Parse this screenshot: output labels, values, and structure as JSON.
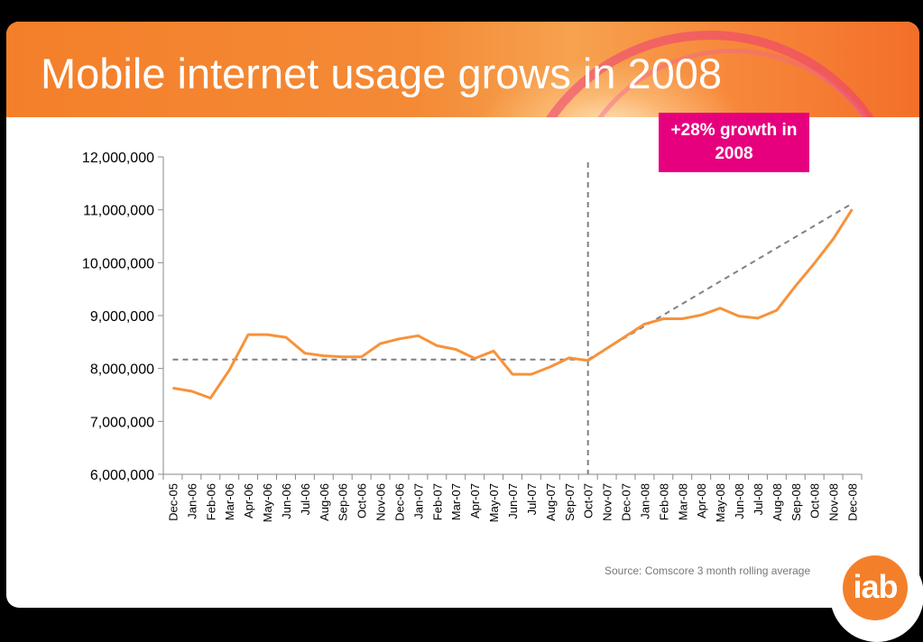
{
  "slide": {
    "title": "Mobile internet usage grows in 2008",
    "callout": "+28% growth in 2008",
    "source": "Source: Comscore 3 month rolling average",
    "logo_text": "iab"
  },
  "colors": {
    "header": "#f47f2a",
    "line": "#f7923a",
    "callout": "#e6007e",
    "trend": "#808080"
  },
  "chart_data": {
    "type": "line",
    "title": "",
    "xlabel": "",
    "ylabel": "",
    "ylim": [
      6000000,
      12000000
    ],
    "yticks": [
      6000000,
      7000000,
      8000000,
      9000000,
      10000000,
      11000000,
      12000000
    ],
    "ytick_labels": [
      "6,000,000",
      "7,000,000",
      "8,000,000",
      "9,000,000",
      "10,000,000",
      "11,000,000",
      "12,000,000"
    ],
    "categories": [
      "Dec-05",
      "Jan-06",
      "Feb-06",
      "Mar-06",
      "Apr-06",
      "May-06",
      "Jun-06",
      "Jul-06",
      "Aug-06",
      "Sep-06",
      "Oct-06",
      "Nov-06",
      "Dec-06",
      "Jan-07",
      "Feb-07",
      "Mar-07",
      "Apr-07",
      "May-07",
      "Jun-07",
      "Jul-07",
      "Aug-07",
      "Sep-07",
      "Oct-07",
      "Nov-07",
      "Dec-07",
      "Jan-08",
      "Feb-08",
      "Mar-08",
      "Apr-08",
      "May-08",
      "Jun-08",
      "Jul-08",
      "Aug-08",
      "Sep-08",
      "Oct-08",
      "Nov-08",
      "Dec-08"
    ],
    "series": [
      {
        "values": [
          7630000,
          7570000,
          7440000,
          7970000,
          8640000,
          8640000,
          8590000,
          8290000,
          8240000,
          8220000,
          8220000,
          8470000,
          8560000,
          8620000,
          8430000,
          8360000,
          8190000,
          8330000,
          7890000,
          7890000,
          8030000,
          8200000,
          8150000,
          8380000,
          8610000,
          8840000,
          8940000,
          8940000,
          9010000,
          9140000,
          8990000,
          8950000,
          9100000,
          9560000,
          9990000,
          10450000,
          11010000
        ]
      }
    ],
    "reference_lines": [
      {
        "type": "horizontal",
        "from": "Dec-05",
        "to": "Oct-07",
        "y": 8170000
      },
      {
        "type": "vertical",
        "x": "Oct-07"
      },
      {
        "type": "trend",
        "from": {
          "x": "Oct-07",
          "y": 8170000
        },
        "to": {
          "x": "Dec-08",
          "y": 11120000
        }
      }
    ],
    "grid": false,
    "legend": "none"
  }
}
